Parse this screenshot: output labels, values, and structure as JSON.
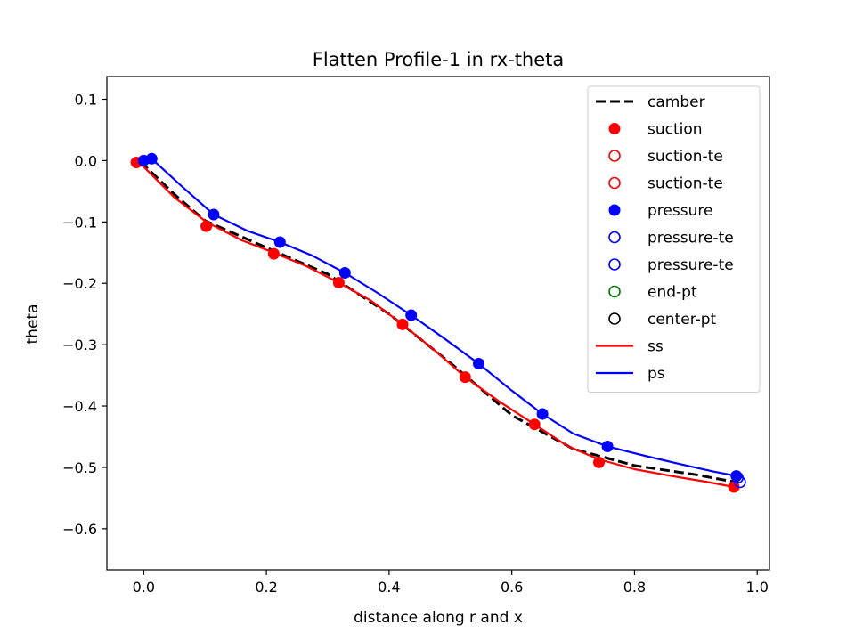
{
  "chart_data": {
    "type": "line",
    "title": "Flatten Profile-1 in rx-theta",
    "xlabel": "distance along r and x",
    "ylabel": "theta",
    "xlim": [
      -0.06,
      1.02
    ],
    "ylim": [
      -0.667,
      0.137
    ],
    "xticks": [
      0.0,
      0.2,
      0.4,
      0.6,
      0.8,
      1.0
    ],
    "xtick_labels": [
      "0.0",
      "0.2",
      "0.4",
      "0.6",
      "0.8",
      "1.0"
    ],
    "yticks": [
      0.1,
      0.0,
      -0.1,
      -0.2,
      -0.3,
      -0.4,
      -0.5,
      -0.6
    ],
    "ytick_labels": [
      "0.1",
      "0.0",
      "−0.1",
      "−0.2",
      "−0.3",
      "−0.4",
      "−0.5",
      "−0.6"
    ],
    "grid": false,
    "legend_position": "top-right",
    "series": [
      {
        "name": "camber",
        "kind": "dashed-line",
        "color": "#000000",
        "x": [
          -0.005,
          0.05,
          0.1,
          0.2,
          0.3,
          0.4,
          0.5,
          0.6,
          0.7,
          0.8,
          0.9,
          0.97
        ],
        "y": [
          -0.002,
          -0.055,
          -0.098,
          -0.142,
          -0.185,
          -0.25,
          -0.33,
          -0.415,
          -0.47,
          -0.497,
          -0.512,
          -0.525
        ]
      },
      {
        "name": "suction",
        "kind": "filled-marker",
        "color": "#ff0000",
        "x": [
          -0.012,
          0.102,
          0.212,
          0.318,
          0.422,
          0.524,
          0.637,
          0.742,
          0.962
        ],
        "y": [
          -0.003,
          -0.107,
          -0.152,
          -0.199,
          -0.267,
          -0.353,
          -0.43,
          -0.492,
          -0.532
        ]
      },
      {
        "name": "suction-te",
        "kind": "open-marker",
        "color": "#ff0000",
        "x": [],
        "y": []
      },
      {
        "name": "suction-te",
        "kind": "open-marker",
        "color": "#ff0000",
        "x": [],
        "y": []
      },
      {
        "name": "pressure",
        "kind": "filled-marker",
        "color": "#0000ff",
        "x": [
          0.0,
          0.013,
          0.114,
          0.222,
          0.328,
          0.436,
          0.546,
          0.65,
          0.756,
          0.966
        ],
        "y": [
          0.0,
          0.003,
          -0.088,
          -0.133,
          -0.183,
          -0.252,
          -0.331,
          -0.413,
          -0.466,
          -0.514
        ]
      },
      {
        "name": "pressure-te",
        "kind": "open-marker",
        "color": "#0000ff",
        "x": [
          0.968
        ],
        "y": [
          -0.517
        ]
      },
      {
        "name": "pressure-te",
        "kind": "open-marker",
        "color": "#0000ff",
        "x": [
          0.972
        ],
        "y": [
          -0.524
        ]
      },
      {
        "name": "end-pt",
        "kind": "open-marker",
        "color": "#008000",
        "x": [],
        "y": []
      },
      {
        "name": "center-pt",
        "kind": "open-marker",
        "color": "#000000",
        "x": [],
        "y": []
      },
      {
        "name": "ss",
        "kind": "solid-line",
        "color": "#ff0000",
        "x": [
          -0.012,
          0.0,
          0.05,
          0.102,
          0.16,
          0.212,
          0.265,
          0.318,
          0.37,
          0.422,
          0.475,
          0.524,
          0.58,
          0.637,
          0.69,
          0.742,
          0.8,
          0.86,
          0.92,
          0.962
        ],
        "y": [
          -0.003,
          -0.01,
          -0.06,
          -0.1,
          -0.13,
          -0.15,
          -0.172,
          -0.199,
          -0.228,
          -0.267,
          -0.31,
          -0.353,
          -0.393,
          -0.43,
          -0.465,
          -0.487,
          -0.503,
          -0.514,
          -0.524,
          -0.532
        ]
      },
      {
        "name": "ps",
        "kind": "solid-line",
        "color": "#0000ff",
        "x": [
          0.0,
          0.013,
          0.06,
          0.114,
          0.17,
          0.222,
          0.275,
          0.328,
          0.38,
          0.436,
          0.49,
          0.546,
          0.6,
          0.65,
          0.7,
          0.756,
          0.82,
          0.88,
          0.93,
          0.966
        ],
        "y": [
          0.0,
          0.003,
          -0.04,
          -0.088,
          -0.115,
          -0.133,
          -0.155,
          -0.183,
          -0.215,
          -0.252,
          -0.29,
          -0.331,
          -0.375,
          -0.413,
          -0.445,
          -0.466,
          -0.482,
          -0.496,
          -0.507,
          -0.514
        ]
      }
    ]
  }
}
